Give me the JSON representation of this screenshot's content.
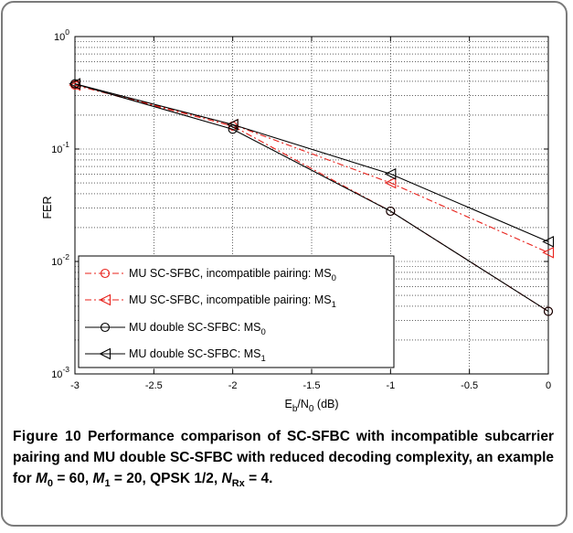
{
  "chart_data": {
    "type": "line",
    "x": [
      -3,
      -2,
      -1,
      0
    ],
    "xlabel": "E_b/N_0 (dB)",
    "ylabel": "FER",
    "xlim": [
      -3,
      0
    ],
    "ylim": [
      0.001,
      1
    ],
    "yscale": "log",
    "grid": true,
    "legend_position": "bottom-left",
    "x_ticks": [
      "-3",
      "-2.5",
      "-2",
      "-1.5",
      "-1",
      "-0.5",
      "0"
    ],
    "y_ticks": [
      "10^0",
      "10^-1",
      "10^-2",
      "10^-3"
    ],
    "series": [
      {
        "name": "MU SC-SFBC, incompatible pairing: MS_0",
        "values": [
          0.37,
          0.16,
          0.028,
          0.0036
        ],
        "color": "#e8201a",
        "style": "dashdot",
        "marker": "circle"
      },
      {
        "name": "MU SC-SFBC, incompatible pairing: MS_1",
        "values": [
          0.37,
          0.165,
          0.05,
          0.012
        ],
        "color": "#e8201a",
        "style": "dashdot",
        "marker": "triangle-left"
      },
      {
        "name": "MU double SC-SFBC: MS_0",
        "values": [
          0.38,
          0.15,
          0.028,
          0.0036
        ],
        "color": "#000000",
        "style": "solid",
        "marker": "circle"
      },
      {
        "name": "MU double SC-SFBC: MS_1",
        "values": [
          0.38,
          0.165,
          0.06,
          0.015
        ],
        "color": "#000000",
        "style": "solid",
        "marker": "triangle-left"
      }
    ]
  },
  "caption": {
    "figure_label": "Figure 10",
    "text_part1": " Performance comparison of SC-SFBC with incompatible subcarrier pairing and MU double SC-SFBC with reduced decoding complexity, an example for ",
    "m0_sym": "M",
    "m0_sub": "0",
    "m0_val": " = 60, ",
    "m1_sym": "M",
    "m1_sub": "1",
    "m1_val": " = 20, QPSK 1/2, ",
    "nrx_sym": "N",
    "nrx_sub": "Rx",
    "nrx_val": " = 4",
    "end": "."
  }
}
